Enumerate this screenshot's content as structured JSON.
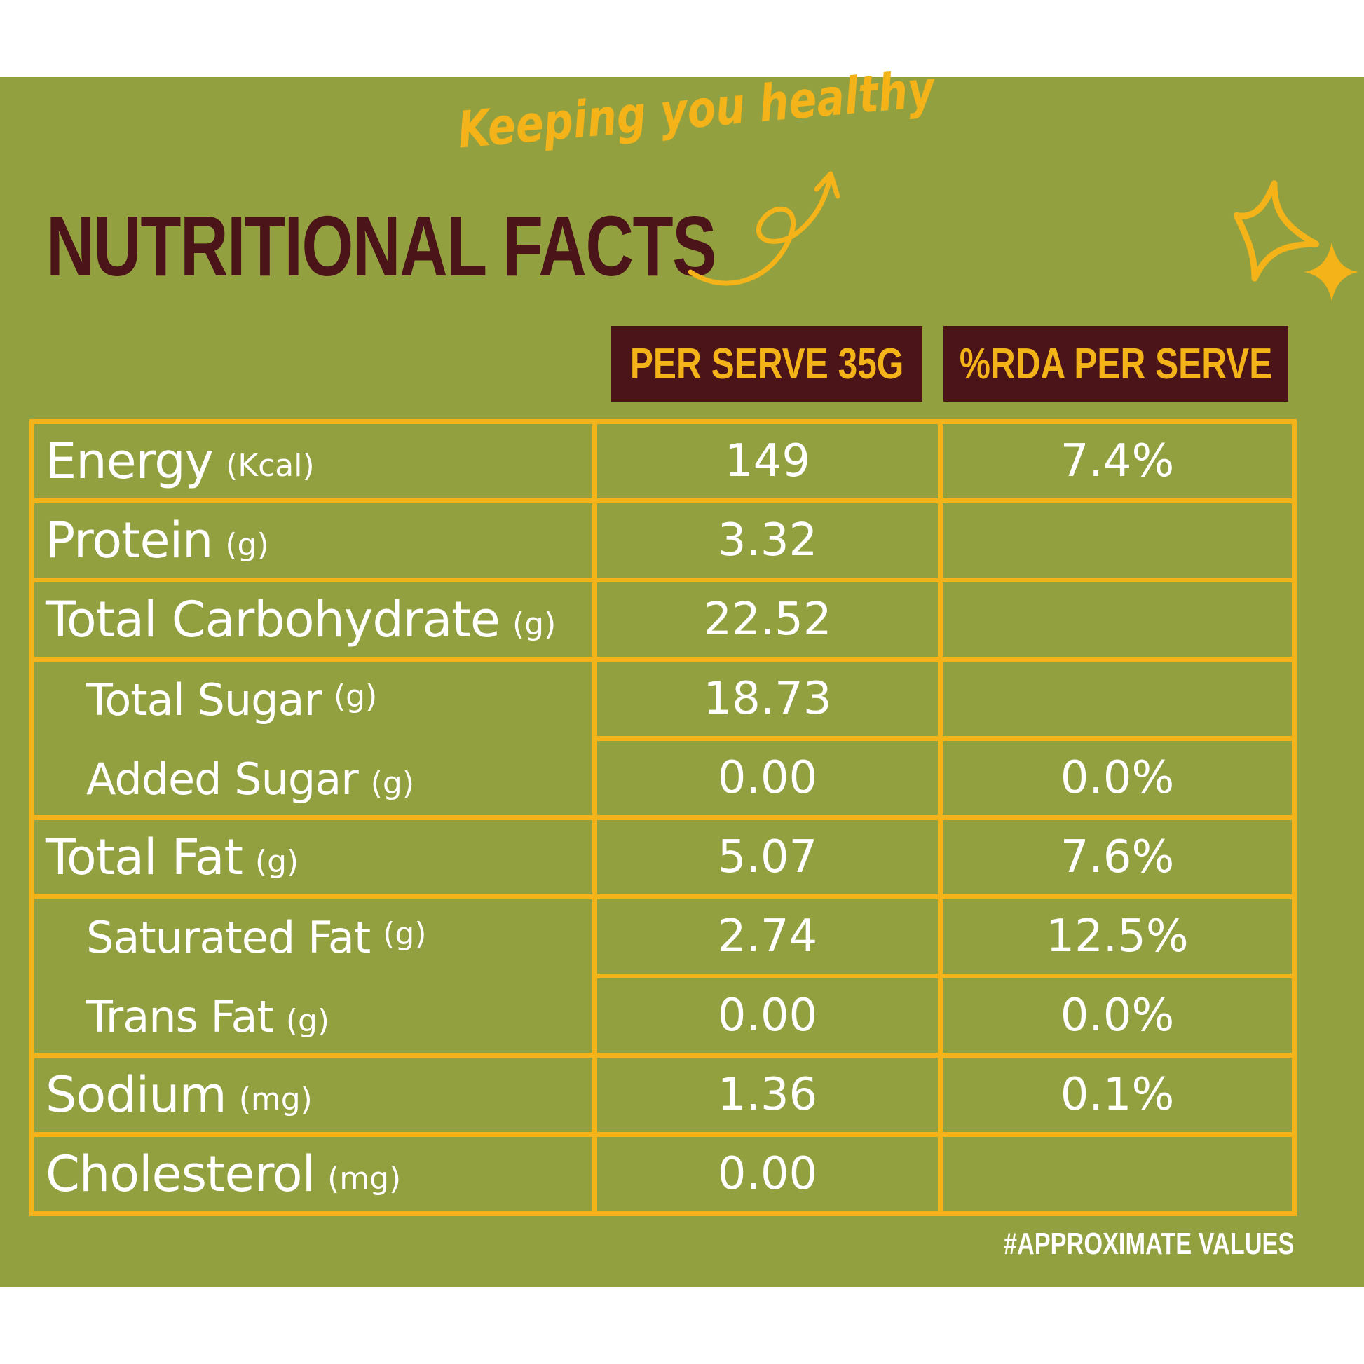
{
  "header": {
    "title": "NUTRITIONAL FACTS",
    "tagline": "Keeping you healthy"
  },
  "columns": [
    "PER SERVE 35G",
    "%RDA PER SERVE"
  ],
  "rows": [
    {
      "name": "Energy",
      "unit": "(Kcal)",
      "per_serve": "149",
      "rda": "7.4%"
    },
    {
      "name": "Protein",
      "unit": "(g)",
      "per_serve": "3.32",
      "rda": ""
    },
    {
      "name": "Total Carbohydrate",
      "unit": "(g)",
      "per_serve": "22.52",
      "rda": ""
    },
    {
      "name": "Total Sugar",
      "unit": "(g)",
      "per_serve": "18.73",
      "rda": ""
    },
    {
      "name": "Added Sugar",
      "unit": "(g)",
      "per_serve": "0.00",
      "rda": "0.0%"
    },
    {
      "name": "Total Fat",
      "unit": "(g)",
      "per_serve": "5.07",
      "rda": "7.6%"
    },
    {
      "name": "Saturated Fat",
      "unit": "(g)",
      "per_serve": "2.74",
      "rda": "12.5%"
    },
    {
      "name": "Trans Fat",
      "unit": "(g)",
      "per_serve": "0.00",
      "rda": "0.0%"
    },
    {
      "name": "Sodium",
      "unit": "(mg)",
      "per_serve": "1.36",
      "rda": "0.1%"
    },
    {
      "name": "Cholesterol",
      "unit": "(mg)",
      "per_serve": "0.00",
      "rda": ""
    }
  ],
  "footnote": "#APPROXIMATE VALUES",
  "colors": {
    "background": "#93a03f",
    "accent": "#f4b318",
    "dark": "#4a1418",
    "text": "#ffffff"
  },
  "icons": [
    "curly-arrow-icon",
    "sparkle-large-icon",
    "sparkle-small-icon"
  ]
}
